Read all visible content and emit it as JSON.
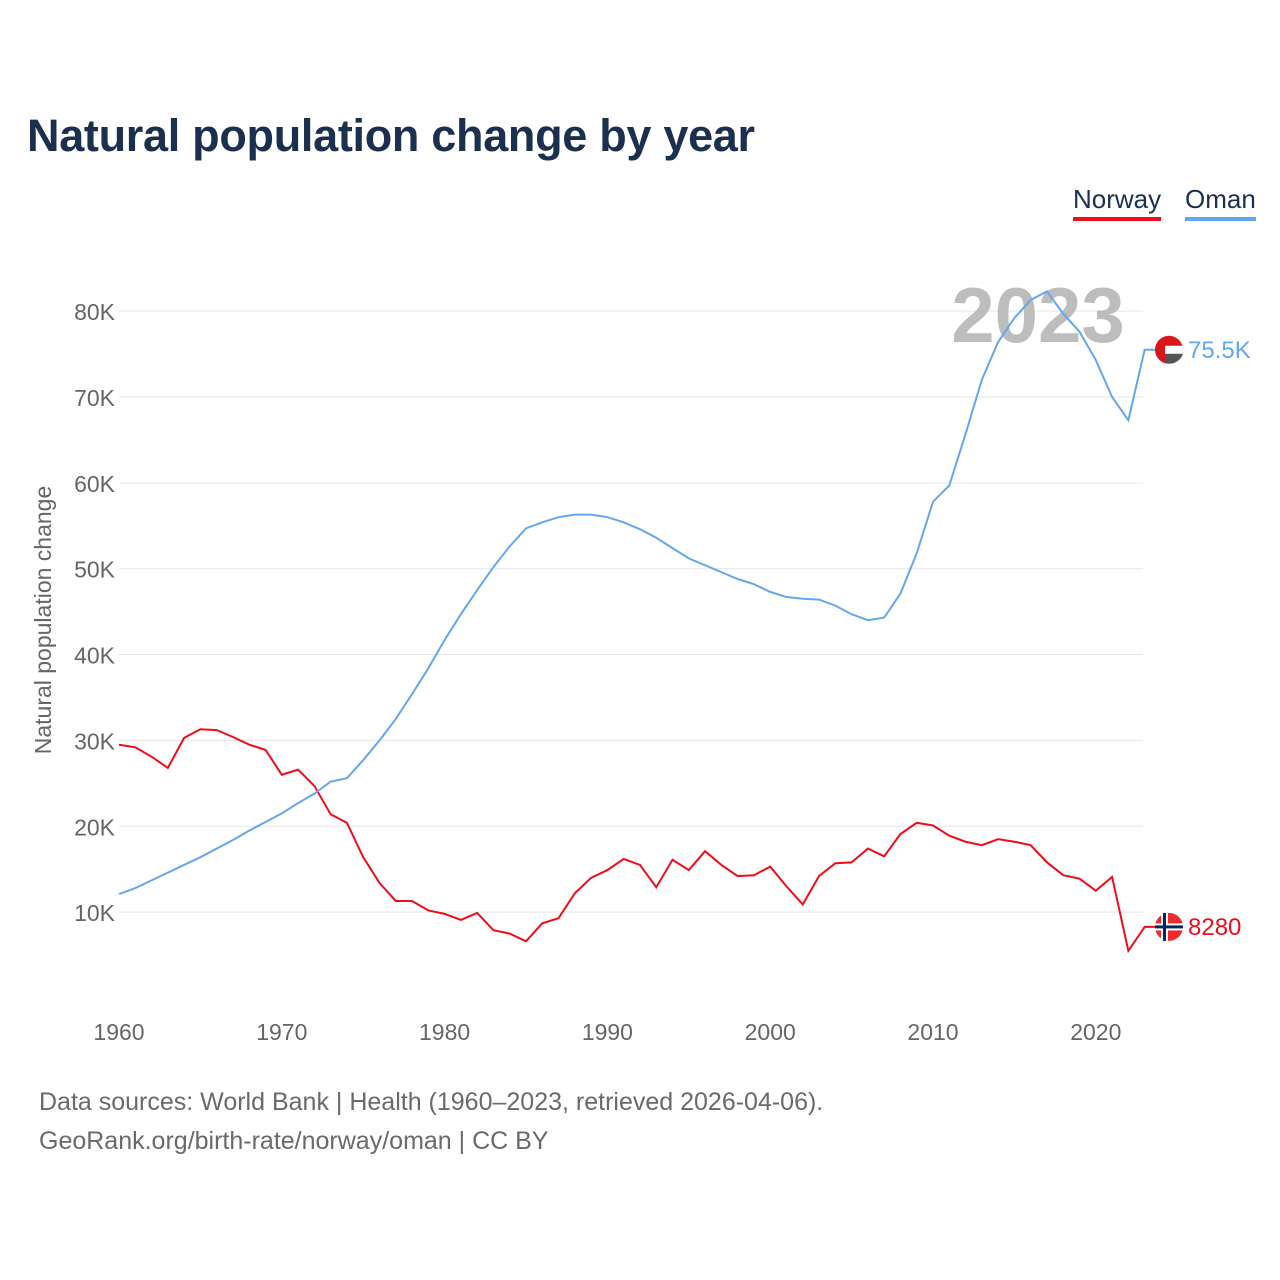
{
  "chart_data": {
    "type": "line",
    "title": "Natural population change by year",
    "xlabel": "",
    "ylabel": "Natural population change",
    "xlim": [
      1960,
      2023
    ],
    "ylim": [
      0,
      85000
    ],
    "x_ticks": [
      1960,
      1970,
      1980,
      1990,
      2000,
      2010,
      2020
    ],
    "x_tick_labels": [
      "1960",
      "1970",
      "1980",
      "1990",
      "2000",
      "2010",
      "2020"
    ],
    "y_ticks": [
      10000,
      20000,
      30000,
      40000,
      50000,
      60000,
      70000,
      80000
    ],
    "y_tick_labels": [
      "10K",
      "20K",
      "30K",
      "40K",
      "50K",
      "60K",
      "70K",
      "80K"
    ],
    "grid": true,
    "legend_placement": "top-right",
    "year_label": "2023",
    "x": [
      1960,
      1961,
      1962,
      1963,
      1964,
      1965,
      1966,
      1967,
      1968,
      1969,
      1970,
      1971,
      1972,
      1973,
      1974,
      1975,
      1976,
      1977,
      1978,
      1979,
      1980,
      1981,
      1982,
      1983,
      1984,
      1985,
      1986,
      1987,
      1988,
      1989,
      1990,
      1991,
      1992,
      1993,
      1994,
      1995,
      1996,
      1997,
      1998,
      1999,
      2000,
      2001,
      2002,
      2003,
      2004,
      2005,
      2006,
      2007,
      2008,
      2009,
      2010,
      2011,
      2012,
      2013,
      2014,
      2015,
      2016,
      2017,
      2018,
      2019,
      2020,
      2021,
      2022,
      2023
    ],
    "series": [
      {
        "name": "Norway",
        "color": "#f00c18",
        "end_label": "8280",
        "values": [
          29500,
          29200,
          28100,
          26800,
          30300,
          31300,
          31200,
          30400,
          29500,
          28900,
          26000,
          26600,
          24700,
          21400,
          20400,
          16400,
          13400,
          11300,
          11300,
          10200,
          9800,
          9100,
          9900,
          7900,
          7500,
          6600,
          8700,
          9300,
          12200,
          14000,
          14900,
          16200,
          15500,
          12900,
          16100,
          14900,
          17100,
          15500,
          14200,
          14300,
          15300,
          13000,
          10900,
          14200,
          15700,
          15800,
          17400,
          16500,
          19100,
          20400,
          20100,
          18900,
          18200,
          17800,
          18500,
          18200,
          17800,
          15800,
          14300,
          13900,
          12500,
          14100,
          5500,
          8280
        ]
      },
      {
        "name": "Oman",
        "color": "#62a8ee",
        "end_label": "75.5K",
        "values": [
          12100,
          12800,
          13700,
          14600,
          15500,
          16400,
          17400,
          18400,
          19500,
          20500,
          21500,
          22700,
          23800,
          25200,
          25600,
          27700,
          30000,
          32500,
          35400,
          38400,
          41700,
          44700,
          47500,
          50200,
          52600,
          54700,
          55400,
          56000,
          56300,
          56300,
          56000,
          55400,
          54600,
          53600,
          52400,
          51200,
          50400,
          49600,
          48800,
          48200,
          47300,
          46700,
          46500,
          46400,
          45700,
          44700,
          44000,
          44300,
          47100,
          51800,
          57800,
          59700,
          65700,
          72000,
          76400,
          79200,
          81300,
          82300,
          79700,
          77600,
          74300,
          70000,
          67300,
          75500
        ]
      }
    ]
  },
  "footer": {
    "line1": "Data sources: World Bank | Health (1960–2023, retrieved 2026-04-06).",
    "line2": "GeoRank.org/birth-rate/norway/oman | CC BY"
  }
}
